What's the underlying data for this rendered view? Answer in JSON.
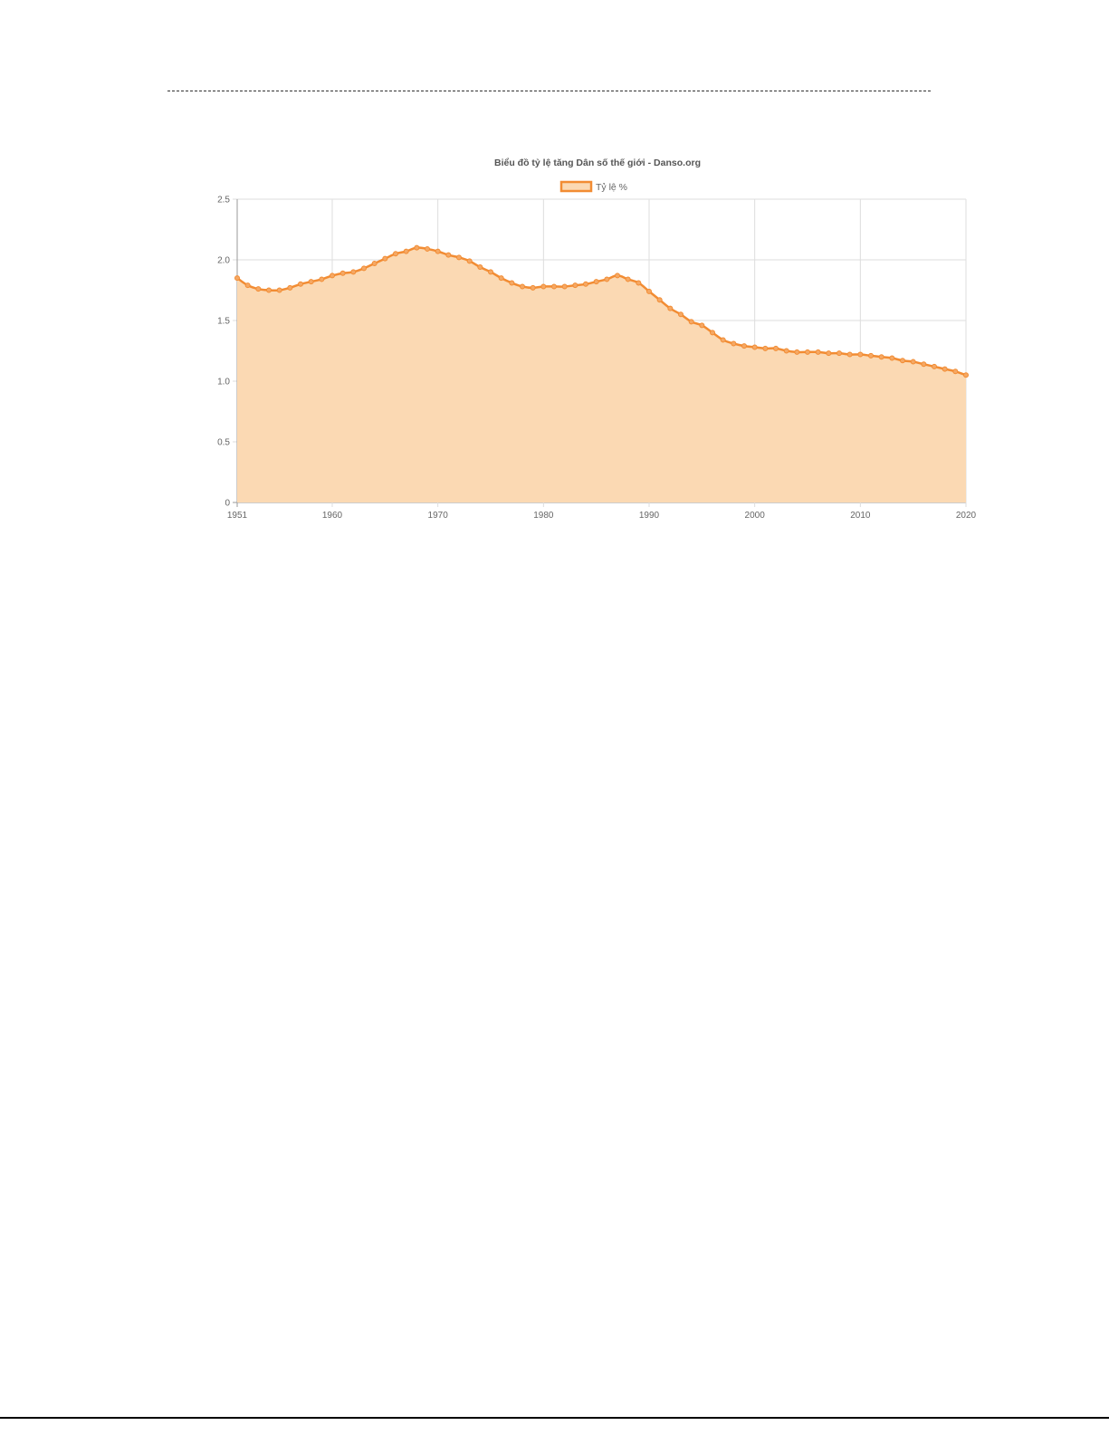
{
  "chart_data": {
    "type": "area",
    "title": "Biểu đồ tỷ lệ tăng Dân số thế giới - Danso.org",
    "legend": {
      "position": "top",
      "entries": [
        "Tỷ lệ %"
      ]
    },
    "colors": {
      "line": "#f28c33",
      "fill": "#fbd9b3"
    },
    "grid": true,
    "xlabel": "",
    "ylabel": "",
    "xlim": [
      1951,
      2020
    ],
    "ylim": [
      0,
      2.5
    ],
    "x_ticks": [
      "1951",
      "1960",
      "1970",
      "1980",
      "1990",
      "2000",
      "2010",
      "2020"
    ],
    "y_ticks": [
      "0",
      "0.5",
      "1.0",
      "1.5",
      "2.0",
      "2.5"
    ],
    "series": [
      {
        "name": "Tỷ lệ %",
        "x": [
          1951,
          1952,
          1953,
          1954,
          1955,
          1956,
          1957,
          1958,
          1959,
          1960,
          1961,
          1962,
          1963,
          1964,
          1965,
          1966,
          1967,
          1968,
          1969,
          1970,
          1971,
          1972,
          1973,
          1974,
          1975,
          1976,
          1977,
          1978,
          1979,
          1980,
          1981,
          1982,
          1983,
          1984,
          1985,
          1986,
          1987,
          1988,
          1989,
          1990,
          1991,
          1992,
          1993,
          1994,
          1995,
          1996,
          1997,
          1998,
          1999,
          2000,
          2001,
          2002,
          2003,
          2004,
          2005,
          2006,
          2007,
          2008,
          2009,
          2010,
          2011,
          2012,
          2013,
          2014,
          2015,
          2016,
          2017,
          2018,
          2019,
          2020
        ],
        "values": [
          1.85,
          1.79,
          1.76,
          1.75,
          1.75,
          1.77,
          1.8,
          1.82,
          1.84,
          1.87,
          1.89,
          1.9,
          1.93,
          1.97,
          2.01,
          2.05,
          2.07,
          2.1,
          2.09,
          2.07,
          2.04,
          2.02,
          1.99,
          1.94,
          1.9,
          1.85,
          1.81,
          1.78,
          1.77,
          1.78,
          1.78,
          1.78,
          1.79,
          1.8,
          1.82,
          1.84,
          1.87,
          1.84,
          1.81,
          1.74,
          1.67,
          1.6,
          1.55,
          1.49,
          1.46,
          1.4,
          1.34,
          1.31,
          1.29,
          1.28,
          1.27,
          1.27,
          1.25,
          1.24,
          1.24,
          1.24,
          1.23,
          1.23,
          1.22,
          1.22,
          1.21,
          1.2,
          1.19,
          1.17,
          1.16,
          1.14,
          1.12,
          1.1,
          1.08,
          1.05
        ]
      }
    ]
  }
}
